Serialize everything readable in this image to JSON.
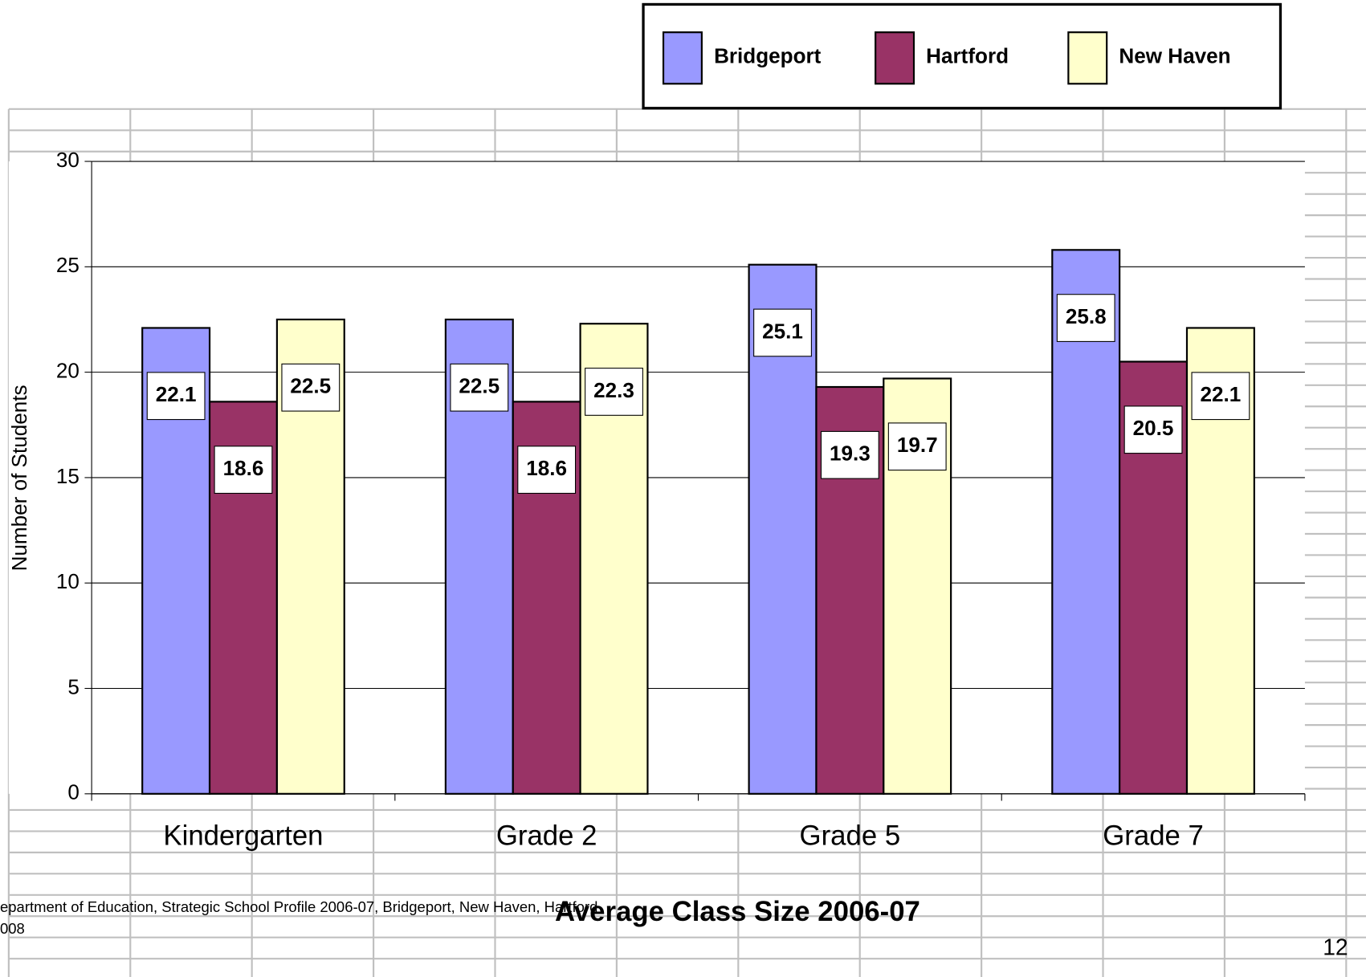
{
  "chart_data": {
    "type": "bar",
    "title": "Average Class Size 2006-07",
    "ylabel": "Number of Students",
    "categories": [
      "Kindergarten",
      "Grade 2",
      "Grade 5",
      "Grade 7"
    ],
    "series": [
      {
        "name": "Bridgeport",
        "color": "#9999ff",
        "values": [
          22.1,
          22.5,
          25.1,
          25.8
        ]
      },
      {
        "name": "Hartford",
        "color": "#993366",
        "values": [
          18.6,
          18.6,
          19.3,
          20.5
        ]
      },
      {
        "name": "New Haven",
        "color": "#ffffcc",
        "values": [
          22.5,
          22.3,
          19.7,
          22.1
        ]
      }
    ],
    "ylim": [
      0,
      30
    ],
    "yticks": [
      0,
      5,
      10,
      15,
      20,
      25,
      30
    ],
    "grid": true,
    "legend": "top-right"
  },
  "footer": {
    "source": [
      "epartment of Education, Strategic School Profile 2006-07, Bridgeport, New Haven, Hartford",
      "008"
    ],
    "page": "12"
  }
}
